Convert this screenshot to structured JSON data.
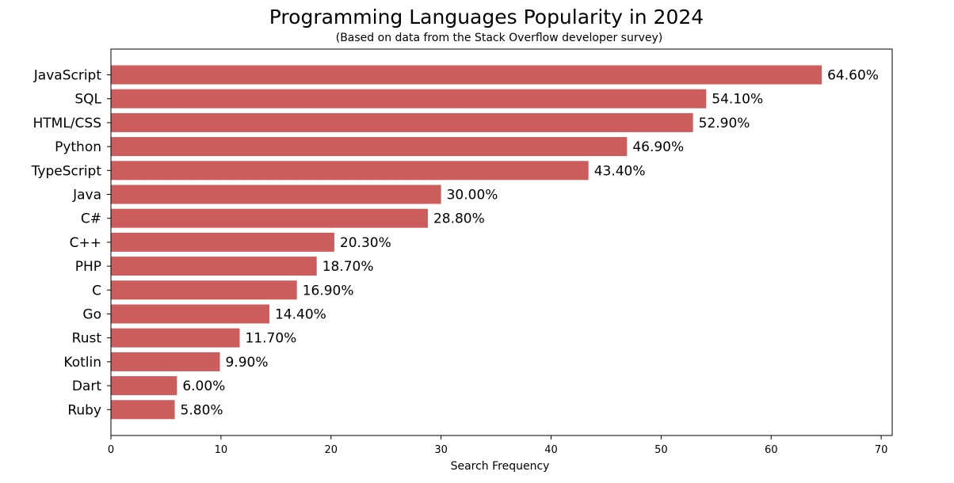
{
  "chart_data": {
    "type": "bar",
    "orientation": "horizontal",
    "title": "Programming Languages Popularity in 2024",
    "subtitle": "(Based on data from the Stack Overflow developer survey)",
    "xlabel": "Search Frequency",
    "ylabel": "",
    "xlim": [
      0,
      71
    ],
    "xticks": [
      0,
      10,
      20,
      30,
      40,
      50,
      60,
      70
    ],
    "grid": false,
    "bar_color": "#cd5c5c",
    "categories": [
      "JavaScript",
      "SQL",
      "HTML/CSS",
      "Python",
      "TypeScript",
      "Java",
      "C#",
      "C++",
      "PHP",
      "C",
      "Go",
      "Rust",
      "Kotlin",
      "Dart",
      "Ruby"
    ],
    "values": [
      64.6,
      54.1,
      52.9,
      46.9,
      43.4,
      30.0,
      28.8,
      20.3,
      18.7,
      16.9,
      14.4,
      11.7,
      9.9,
      6.0,
      5.8
    ],
    "value_labels": [
      "64.60%",
      "54.10%",
      "52.90%",
      "46.90%",
      "43.40%",
      "30.00%",
      "28.80%",
      "20.30%",
      "18.70%",
      "16.90%",
      "14.40%",
      "11.70%",
      "9.90%",
      "6.00%",
      "5.80%"
    ]
  }
}
